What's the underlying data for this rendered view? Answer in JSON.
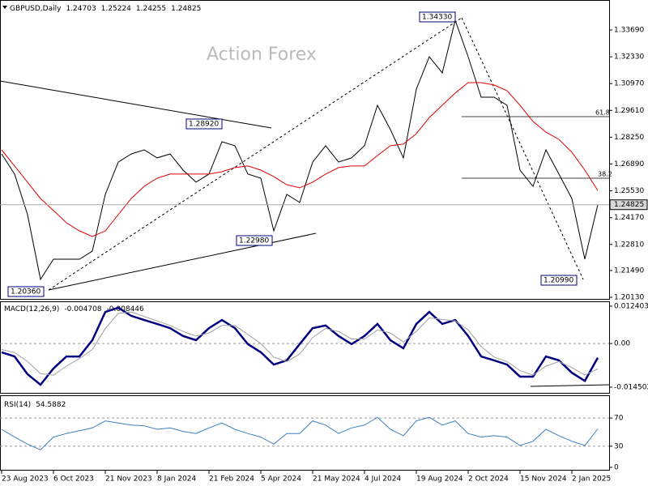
{
  "chart_data": [
    {
      "type": "line",
      "title": "GBPUSD,Daily",
      "ohlc": [
        1.24703,
        1.25224,
        1.24255,
        1.24825
      ],
      "watermark": "Action Forex",
      "ylim": [
        1.20007,
        1.3521
      ],
      "yticks": [
        {
          "value": 1.3369,
          "label": "1.33690"
        },
        {
          "value": 1.3233,
          "label": "1.32330"
        },
        {
          "value": 1.3097,
          "label": "1.30970"
        },
        {
          "value": 1.2961,
          "label": "1.29610"
        },
        {
          "value": 1.2825,
          "label": "1.28250"
        },
        {
          "value": 1.2689,
          "label": "1.26890"
        },
        {
          "value": 1.2553,
          "label": "1.25530"
        },
        {
          "value": 1.2417,
          "label": "1.24170"
        },
        {
          "value": 1.2281,
          "label": "1.22810"
        },
        {
          "value": 1.2149,
          "label": "1.21490"
        },
        {
          "value": 1.2013,
          "label": "1.20130"
        }
      ],
      "xlim": [
        0,
        46
      ],
      "xticks": [
        {
          "value": 0,
          "label": "23 Aug 2023"
        },
        {
          "value": 4,
          "label": "6 Oct 2023"
        },
        {
          "value": 8,
          "label": "21 Nov 2023"
        },
        {
          "value": 12,
          "label": "8 Jan 2024"
        },
        {
          "value": 16,
          "label": "21 Feb 2024"
        },
        {
          "value": 20,
          "label": "5 Apr 2024"
        },
        {
          "value": 24,
          "label": "21 May 2024"
        },
        {
          "value": 28,
          "label": "4 Jul 2024"
        },
        {
          "value": 32,
          "label": "19 Aug 2024"
        },
        {
          "value": 36,
          "label": "2 Oct 2024"
        },
        {
          "value": 40,
          "label": "15 Nov 2024"
        },
        {
          "value": 44,
          "label": "2 Jan 2025"
        }
      ],
      "series": [
        {
          "color": "#000000",
          "values": [
            1.274,
            1.2638,
            1.2432,
            1.2104,
            1.2206,
            1.2206,
            1.2206,
            1.2247,
            1.2535,
            1.2699,
            1.274,
            1.2761,
            1.272,
            1.274,
            1.2658,
            1.2597,
            1.2638,
            1.2802,
            1.2782,
            1.2638,
            1.2617,
            1.235,
            1.2535,
            1.2494,
            1.2699,
            1.2782,
            1.2699,
            1.272,
            1.2782,
            1.2987,
            1.2864,
            1.272,
            1.3069,
            1.3233,
            1.3151,
            1.3418,
            1.3233,
            1.3028,
            1.3028,
            1.2987,
            1.2658,
            1.2576,
            1.2761,
            1.2638,
            1.2514,
            1.2206,
            1.24825
          ]
        },
        {
          "color": "#e00000",
          "values": [
            1.2761,
            1.2679,
            1.2597,
            1.2514,
            1.2453,
            1.2391,
            1.235,
            1.2321,
            1.235,
            1.2432,
            1.2514,
            1.2576,
            1.2617,
            1.2638,
            1.2638,
            1.2638,
            1.2638,
            1.265,
            1.2671,
            1.2679,
            1.2658,
            1.2625,
            1.2584,
            1.2568,
            1.2597,
            1.2638,
            1.2671,
            1.2679,
            1.2679,
            1.2732,
            1.2782,
            1.279,
            1.2843,
            1.2925,
            1.2987,
            1.3049,
            1.3102,
            1.3102,
            1.309,
            1.3061,
            1.2987,
            1.2905,
            1.2851,
            1.2814,
            1.2749,
            1.2658,
            1.2555
          ]
        }
      ],
      "last_price": 1.24825,
      "annotations": [
        "1.28920",
        "1.22980",
        "1.20360",
        "1.34330",
        "1.20990"
      ],
      "fib_levels": [
        "61.8",
        "38.2"
      ]
    },
    {
      "type": "line",
      "title": "MACD(12,26,9)",
      "header_values": [
        -0.004708,
        -0.008446
      ],
      "ylim": [
        -0.016654,
        0.014017
      ],
      "yticks": [
        0.012403,
        {
          "value": 0,
          "label": "0.00"
        },
        -0.014502
      ],
      "series": [
        {
          "color": "#000080",
          "values": [
            -0.0029,
            -0.0043,
            -0.0102,
            -0.0137,
            -0.0083,
            -0.0043,
            -0.0043,
            0.0011,
            0.0105,
            0.0119,
            0.0092,
            0.0078,
            0.0065,
            0.0051,
            0.0025,
            0.0011,
            0.0051,
            0.0078,
            0.0051,
            -0.0002,
            -0.0029,
            -0.007,
            -0.0056,
            -0.0002,
            0.0051,
            0.006,
            0.0025,
            -0.0002,
            0.0025,
            0.0065,
            0.0011,
            -0.0016,
            0.0065,
            0.0105,
            0.0065,
            0.0078,
            0.0025,
            -0.0043,
            -0.0056,
            -0.007,
            -0.011,
            -0.011,
            -0.0043,
            -0.0056,
            -0.0097,
            -0.0124,
            -0.004708
          ]
        },
        {
          "color": "#a0a0a0",
          "values": [
            -0.002,
            -0.003,
            -0.006,
            -0.01,
            -0.0105,
            -0.0075,
            -0.005,
            -0.002,
            0.005,
            0.01,
            0.0105,
            0.009,
            0.0075,
            0.006,
            0.004,
            0.0025,
            0.0035,
            0.006,
            0.006,
            0.003,
            0.0,
            -0.0045,
            -0.006,
            -0.0035,
            0.002,
            0.005,
            0.004,
            0.0015,
            0.0015,
            0.0045,
            0.0035,
            0.0005,
            0.004,
            0.0085,
            0.008,
            0.0075,
            0.0045,
            -0.001,
            -0.0045,
            -0.006,
            -0.009,
            -0.0105,
            -0.0075,
            -0.006,
            -0.008,
            -0.0105,
            -0.008446
          ]
        }
      ]
    },
    {
      "type": "line",
      "title": "RSI(14)",
      "header_values": [
        54.5882
      ],
      "ylim": [
        0,
        100
      ],
      "yticks": [
        70,
        30,
        0
      ],
      "series": [
        {
          "color": "#3a7fc0",
          "values": [
            54,
            43,
            33,
            25,
            43,
            48,
            52,
            56,
            66,
            63,
            60,
            59,
            54,
            56,
            51,
            48,
            56,
            63,
            54,
            48,
            43,
            33,
            48,
            48,
            66,
            60,
            48,
            56,
            60,
            71,
            54,
            45,
            66,
            71,
            60,
            66,
            48,
            43,
            45,
            43,
            31,
            37,
            54,
            45,
            37,
            31,
            54.5882
          ]
        }
      ]
    }
  ]
}
